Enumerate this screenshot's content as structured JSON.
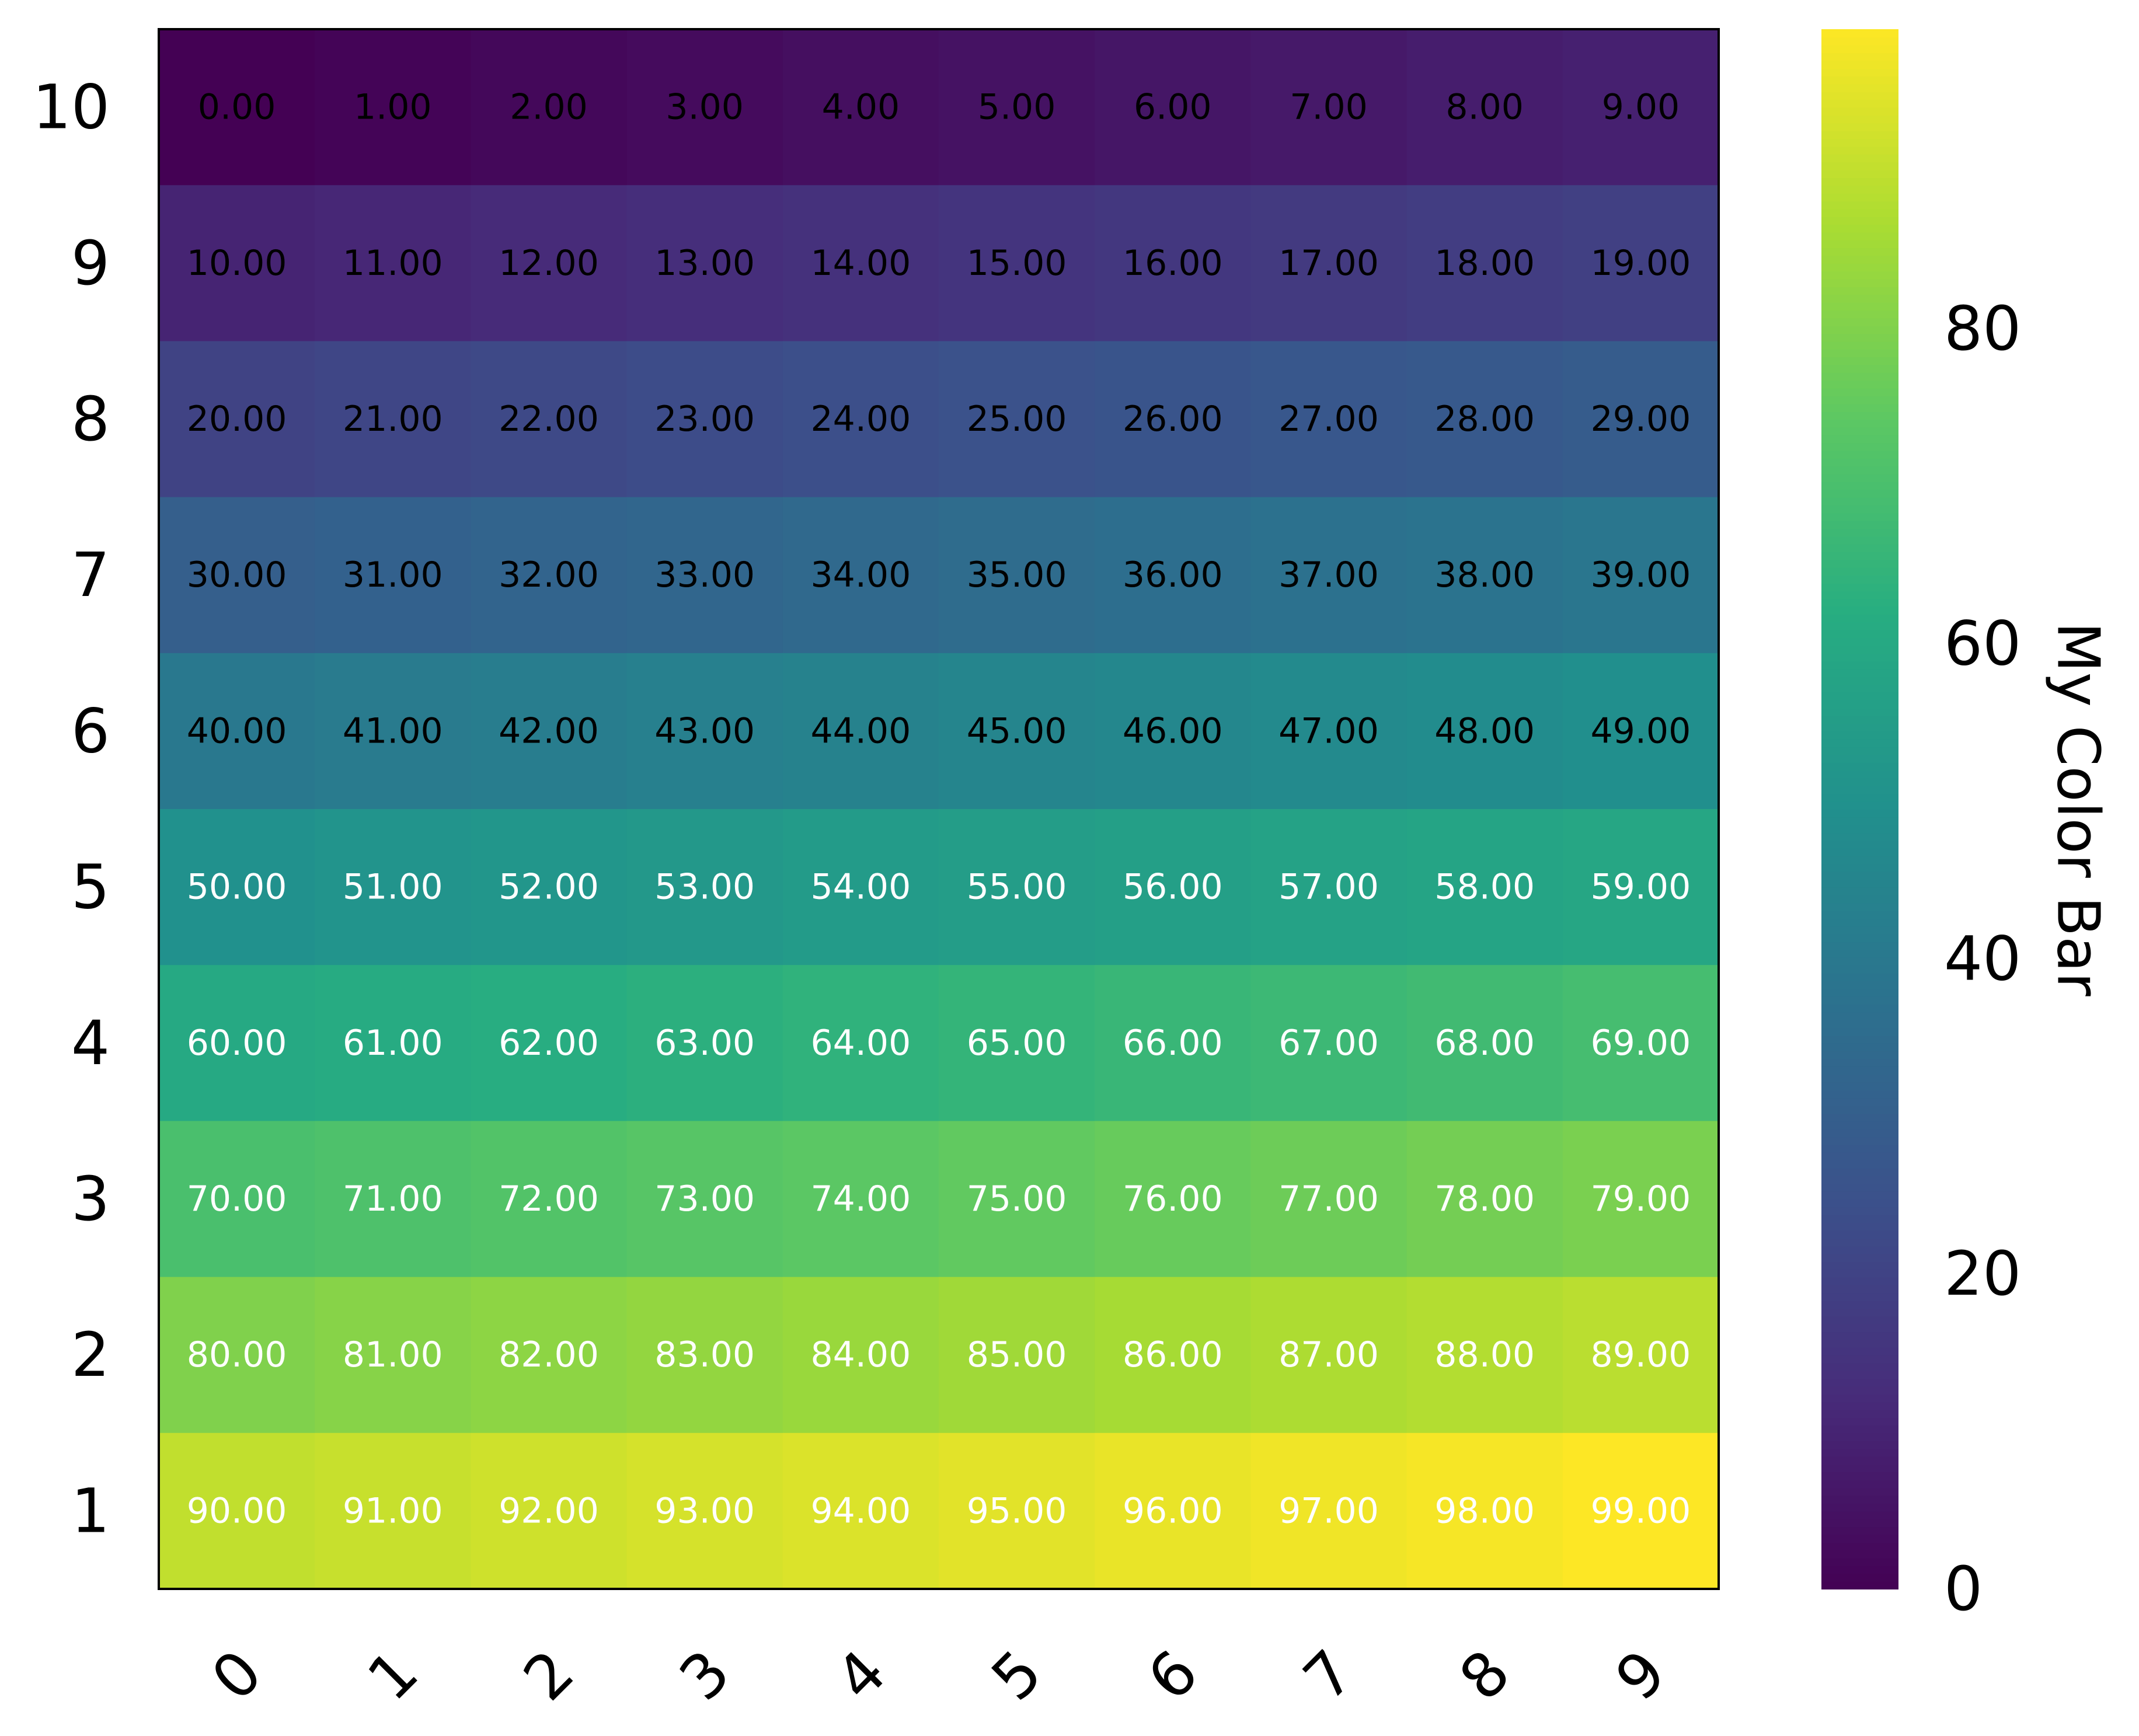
{
  "chart_data": {
    "type": "heatmap",
    "title": "",
    "xlabel": "",
    "ylabel": "",
    "x_categories": [
      "0",
      "1",
      "2",
      "3",
      "4",
      "5",
      "6",
      "7",
      "8",
      "9"
    ],
    "y_categories": [
      "10",
      "9",
      "8",
      "7",
      "6",
      "5",
      "4",
      "3",
      "2",
      "1"
    ],
    "values": [
      [
        0,
        1,
        2,
        3,
        4,
        5,
        6,
        7,
        8,
        9
      ],
      [
        10,
        11,
        12,
        13,
        14,
        15,
        16,
        17,
        18,
        19
      ],
      [
        20,
        21,
        22,
        23,
        24,
        25,
        26,
        27,
        28,
        29
      ],
      [
        30,
        31,
        32,
        33,
        34,
        35,
        36,
        37,
        38,
        39
      ],
      [
        40,
        41,
        42,
        43,
        44,
        45,
        46,
        47,
        48,
        49
      ],
      [
        50,
        51,
        52,
        53,
        54,
        55,
        56,
        57,
        58,
        59
      ],
      [
        60,
        61,
        62,
        63,
        64,
        65,
        66,
        67,
        68,
        69
      ],
      [
        70,
        71,
        72,
        73,
        74,
        75,
        76,
        77,
        78,
        79
      ],
      [
        80,
        81,
        82,
        83,
        84,
        85,
        86,
        87,
        88,
        89
      ],
      [
        90,
        91,
        92,
        93,
        94,
        95,
        96,
        97,
        98,
        99
      ]
    ],
    "cell_label_format": "2-decimal",
    "colormap": "viridis",
    "colorbar": {
      "label": "My Color Bar",
      "range": [
        0,
        99
      ],
      "ticks": [
        0,
        20,
        40,
        60,
        80
      ]
    },
    "x_tick_rotation": "45",
    "label_colors": {
      "dark": "#000000",
      "light": "#ffffff"
    },
    "frame_color": "#000000"
  }
}
